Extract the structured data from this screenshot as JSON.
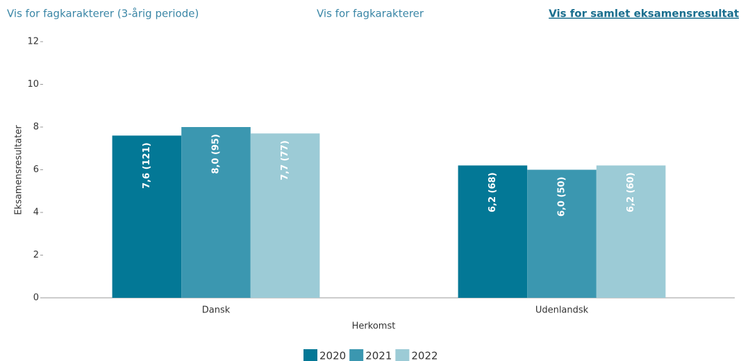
{
  "links": [
    "Vis for fagkarakterer (3-årig periode)",
    "Vis for fagkarakterer",
    "Vis for samlet eksamensresultat"
  ],
  "chart_data": {
    "type": "bar",
    "categories": [
      "Dansk",
      "Udenlandsk"
    ],
    "x_label": "Herkomst",
    "y_label": "Eksamensresultater",
    "series": [
      {
        "name": "2020",
        "color": "#037896",
        "values": [
          7.6,
          6.2
        ],
        "value_labels": [
          "7,6 (121)",
          "6,2 (68)"
        ]
      },
      {
        "name": "2021",
        "color": "#3b97b0",
        "values": [
          8.0,
          6.0
        ],
        "value_labels": [
          "8,0 (95)",
          "6,0 (50)"
        ]
      },
      {
        "name": "2022",
        "color": "#9ccbd6",
        "values": [
          7.7,
          6.2
        ],
        "value_labels": [
          "7,7 (77)",
          "6,2 (60)"
        ]
      }
    ],
    "ylim": [
      0,
      12
    ],
    "yticks": [
      0,
      2,
      4,
      6,
      8,
      10,
      12
    ],
    "grid": false,
    "legend": "bottom"
  }
}
